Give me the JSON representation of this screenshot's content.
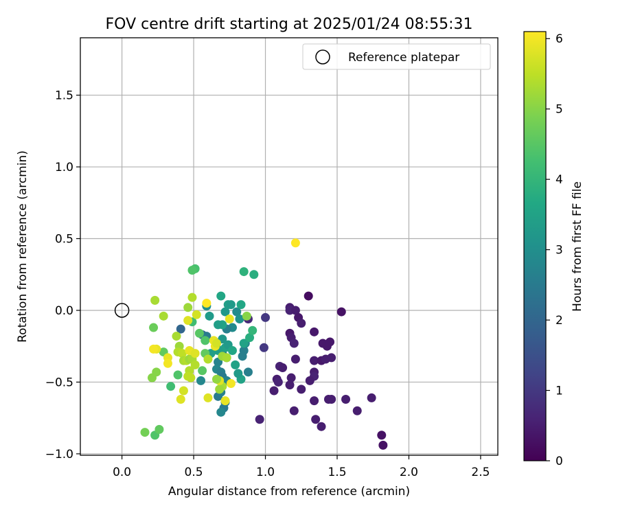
{
  "chart_data": {
    "type": "scatter",
    "title": "FOV centre drift starting at 2025/01/24 08:55:31",
    "xlabel": "Angular distance from reference (arcmin)",
    "ylabel": "Rotation from reference (arcmin)",
    "xlim": [
      -0.29,
      2.62
    ],
    "ylim": [
      -1.01,
      1.9
    ],
    "x_ticks": [
      0.0,
      0.5,
      1.0,
      1.5,
      2.0,
      2.5
    ],
    "x_tick_labels": [
      "0.0",
      "0.5",
      "1.0",
      "1.5",
      "2.0",
      "2.5"
    ],
    "y_ticks": [
      -1.0,
      -0.5,
      0.0,
      0.5,
      1.0,
      1.5
    ],
    "y_tick_labels": [
      "−1.0",
      "−0.5",
      "0.0",
      "0.5",
      "1.0",
      "1.5"
    ],
    "grid": true,
    "legend": {
      "placement": "top-right",
      "label": "Reference platepar"
    },
    "reference_point": {
      "x": 0.0,
      "y": 0.0
    },
    "colorbar": {
      "label": "Hours from first FF file",
      "range": [
        0,
        6.1
      ],
      "ticks": [
        0,
        1,
        2,
        3,
        4,
        5,
        6
      ],
      "tick_labels": [
        "0",
        "1",
        "2",
        "3",
        "4",
        "5",
        "6"
      ],
      "colormap": "viridis"
    },
    "points": [
      [
        1.3,
        0.1,
        0.2
      ],
      [
        1.53,
        -0.01,
        0.3
      ],
      [
        1.17,
        0.02,
        0.5
      ],
      [
        1.17,
        0.0,
        0.6
      ],
      [
        1.21,
        0.0,
        0.5
      ],
      [
        1.23,
        -0.05,
        0.4
      ],
      [
        1.25,
        -0.09,
        0.5
      ],
      [
        1.17,
        -0.16,
        0.4
      ],
      [
        1.18,
        -0.19,
        0.5
      ],
      [
        1.2,
        -0.23,
        0.6
      ],
      [
        1.34,
        -0.15,
        0.4
      ],
      [
        1.4,
        -0.23,
        0.4
      ],
      [
        1.43,
        -0.25,
        0.4
      ],
      [
        1.45,
        -0.22,
        0.4
      ],
      [
        1.21,
        -0.34,
        0.5
      ],
      [
        1.34,
        -0.35,
        0.5
      ],
      [
        1.39,
        -0.35,
        0.4
      ],
      [
        1.42,
        -0.34,
        0.5
      ],
      [
        1.46,
        -0.33,
        0.5
      ],
      [
        1.1,
        -0.39,
        0.6
      ],
      [
        1.12,
        -0.4,
        0.5
      ],
      [
        1.34,
        -0.43,
        0.5
      ],
      [
        1.34,
        -0.46,
        0.6
      ],
      [
        1.08,
        -0.48,
        0.5
      ],
      [
        1.09,
        -0.5,
        0.6
      ],
      [
        1.18,
        -0.47,
        0.5
      ],
      [
        1.31,
        -0.49,
        0.5
      ],
      [
        1.17,
        -0.52,
        0.5
      ],
      [
        1.25,
        -0.55,
        0.5
      ],
      [
        1.06,
        -0.56,
        0.5
      ],
      [
        1.34,
        -0.63,
        0.5
      ],
      [
        1.44,
        -0.62,
        0.5
      ],
      [
        1.46,
        -0.62,
        0.5
      ],
      [
        1.56,
        -0.62,
        0.5
      ],
      [
        1.74,
        -0.61,
        0.5
      ],
      [
        1.2,
        -0.7,
        0.5
      ],
      [
        1.64,
        -0.7,
        0.5
      ],
      [
        0.96,
        -0.76,
        0.6
      ],
      [
        1.35,
        -0.76,
        0.5
      ],
      [
        1.39,
        -0.81,
        0.5
      ],
      [
        1.81,
        -0.87,
        0.3
      ],
      [
        1.82,
        -0.94,
        0.3
      ],
      [
        0.88,
        -0.06,
        0.7
      ],
      [
        1.0,
        -0.05,
        1.0
      ],
      [
        0.99,
        -0.26,
        1.0
      ],
      [
        0.41,
        -0.13,
        2.0
      ],
      [
        0.56,
        -0.17,
        2.0
      ],
      [
        0.59,
        -0.18,
        2.5
      ],
      [
        0.66,
        -0.26,
        2.8
      ],
      [
        0.7,
        -0.3,
        2.6
      ],
      [
        0.73,
        -0.33,
        2.5
      ],
      [
        0.67,
        -0.36,
        2.7
      ],
      [
        0.66,
        -0.41,
        2.8
      ],
      [
        0.69,
        -0.43,
        2.6
      ],
      [
        0.7,
        -0.46,
        2.5
      ],
      [
        0.73,
        -0.49,
        2.7
      ],
      [
        0.55,
        -0.49,
        2.8
      ],
      [
        0.67,
        -0.6,
        2.5
      ],
      [
        0.69,
        -0.57,
        2.6
      ],
      [
        0.72,
        -0.64,
        2.4
      ],
      [
        0.71,
        -0.68,
        2.5
      ],
      [
        0.69,
        -0.71,
        2.8
      ],
      [
        0.86,
        -0.23,
        2.7
      ],
      [
        0.85,
        -0.28,
        2.6
      ],
      [
        0.84,
        -0.32,
        2.6
      ],
      [
        0.88,
        -0.43,
        2.6
      ],
      [
        0.77,
        -0.12,
        2.9
      ],
      [
        0.73,
        -0.13,
        2.6
      ],
      [
        0.8,
        -0.01,
        2.9
      ],
      [
        0.82,
        -0.06,
        3.1
      ],
      [
        0.72,
        -0.01,
        3.2
      ],
      [
        0.74,
        0.04,
        3.4
      ],
      [
        0.76,
        0.04,
        3.3
      ],
      [
        0.69,
        0.1,
        3.6
      ],
      [
        0.7,
        -0.1,
        3.5
      ],
      [
        0.67,
        -0.1,
        3.4
      ],
      [
        0.7,
        -0.2,
        3.2
      ],
      [
        0.72,
        -0.26,
        3.5
      ],
      [
        0.74,
        -0.24,
        3.3
      ],
      [
        0.67,
        -0.28,
        3.4
      ],
      [
        0.62,
        -0.3,
        3.4
      ],
      [
        0.61,
        -0.04,
        3.3
      ],
      [
        0.59,
        0.03,
        3.0
      ],
      [
        0.83,
        0.04,
        3.6
      ],
      [
        0.85,
        -0.23,
        3.5
      ],
      [
        0.83,
        -0.48,
        3.5
      ],
      [
        0.81,
        -0.44,
        3.3
      ],
      [
        0.79,
        -0.38,
        3.5
      ],
      [
        0.77,
        -0.28,
        3.6
      ],
      [
        0.89,
        -0.19,
        3.8
      ],
      [
        0.91,
        -0.14,
        4.0
      ],
      [
        0.85,
        0.27,
        3.9
      ],
      [
        0.92,
        0.25,
        3.8
      ],
      [
        0.51,
        0.29,
        4.3
      ],
      [
        0.49,
        0.28,
        4.4
      ],
      [
        0.49,
        -0.08,
        4.2
      ],
      [
        0.54,
        -0.16,
        4.5
      ],
      [
        0.58,
        -0.21,
        4.4
      ],
      [
        0.58,
        -0.3,
        4.6
      ],
      [
        0.56,
        -0.42,
        4.5
      ],
      [
        0.34,
        -0.53,
        4.2
      ],
      [
        0.39,
        -0.45,
        4.4
      ],
      [
        0.29,
        -0.29,
        4.6
      ],
      [
        0.24,
        -0.43,
        5.0
      ],
      [
        0.21,
        -0.47,
        5.0
      ],
      [
        0.23,
        -0.87,
        4.4
      ],
      [
        0.26,
        -0.83,
        4.6
      ],
      [
        0.16,
        -0.85,
        4.8
      ],
      [
        0.22,
        -0.12,
        4.7
      ],
      [
        0.23,
        0.07,
        5.3
      ],
      [
        0.29,
        -0.04,
        5.3
      ],
      [
        0.38,
        -0.18,
        5.3
      ],
      [
        0.4,
        -0.25,
        5.2
      ],
      [
        0.39,
        -0.29,
        5.4
      ],
      [
        0.42,
        -0.3,
        5.5
      ],
      [
        0.43,
        -0.35,
        5.3
      ],
      [
        0.45,
        -0.35,
        5.4
      ],
      [
        0.47,
        -0.34,
        5.2
      ],
      [
        0.49,
        -0.34,
        5.3
      ],
      [
        0.51,
        -0.38,
        5.4
      ],
      [
        0.47,
        -0.42,
        5.4
      ],
      [
        0.46,
        -0.46,
        5.5
      ],
      [
        0.48,
        -0.47,
        5.5
      ],
      [
        0.43,
        -0.56,
        5.7
      ],
      [
        0.41,
        -0.62,
        5.8
      ],
      [
        0.46,
        0.02,
        5.2
      ],
      [
        0.49,
        0.09,
        5.4
      ],
      [
        0.52,
        -0.03,
        5.7
      ],
      [
        0.46,
        -0.07,
        5.8
      ],
      [
        0.47,
        -0.28,
        5.9
      ],
      [
        0.51,
        -0.3,
        5.8
      ],
      [
        0.6,
        -0.34,
        5.4
      ],
      [
        0.64,
        -0.21,
        5.9
      ],
      [
        0.65,
        -0.25,
        5.9
      ],
      [
        0.66,
        -0.23,
        5.7
      ],
      [
        0.7,
        -0.32,
        5.2
      ],
      [
        0.73,
        -0.33,
        5.3
      ],
      [
        0.7,
        -0.53,
        5.3
      ],
      [
        0.68,
        -0.55,
        5.2
      ],
      [
        0.6,
        -0.61,
        5.8
      ],
      [
        0.72,
        -0.63,
        5.9
      ],
      [
        0.75,
        -0.06,
        5.9
      ],
      [
        0.76,
        -0.51,
        6.0
      ],
      [
        0.59,
        0.05,
        6.1
      ],
      [
        0.24,
        -0.27,
        5.9
      ],
      [
        0.22,
        -0.27,
        6.0
      ],
      [
        0.32,
        -0.33,
        5.9
      ],
      [
        0.32,
        -0.37,
        6.0
      ],
      [
        0.68,
        -0.49,
        5.8
      ],
      [
        0.66,
        -0.48,
        5.1
      ],
      [
        0.87,
        -0.04,
        5.0
      ],
      [
        1.21,
        0.47,
        6.1
      ]
    ]
  }
}
